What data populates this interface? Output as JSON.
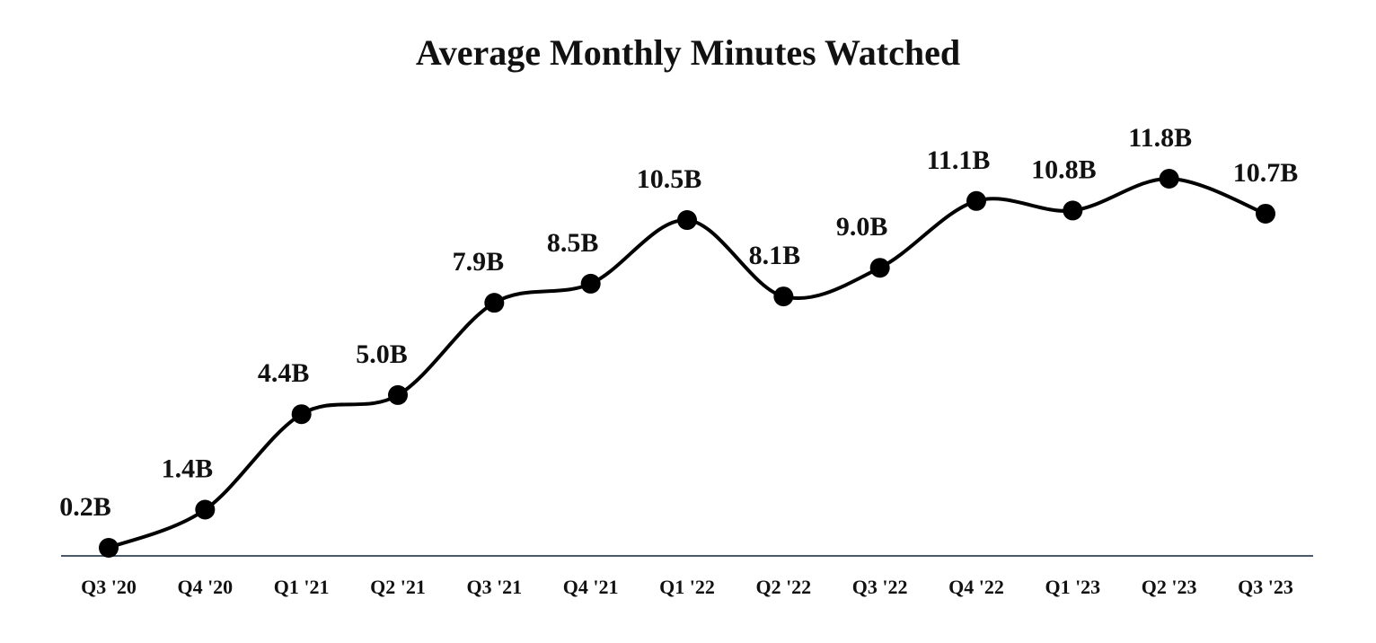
{
  "chart_data": {
    "type": "line",
    "title": "Average Monthly Minutes Watched",
    "xlabel": "",
    "ylabel": "",
    "categories": [
      "Q3 '20",
      "Q4 '20",
      "Q1 '21",
      "Q2 '21",
      "Q3 '21",
      "Q4 '21",
      "Q1 '22",
      "Q2 '22",
      "Q3 '22",
      "Q4 '22",
      "Q1 '23",
      "Q2 '23",
      "Q3 '23"
    ],
    "series": [
      {
        "values": [
          0.2,
          1.4,
          4.4,
          5.0,
          7.9,
          8.5,
          10.5,
          8.1,
          9.0,
          11.1,
          10.8,
          11.8,
          10.7
        ],
        "labels": [
          "0.2B",
          "1.4B",
          "4.4B",
          "5.0B",
          "7.9B",
          "8.5B",
          "10.5B",
          "8.1B",
          "9.0B",
          "11.1B",
          "10.8B",
          "11.8B",
          "10.7B"
        ]
      }
    ],
    "ylim": [
      0,
      12
    ],
    "grid": false,
    "legend": "none",
    "colors": {
      "line": "#000000",
      "marker": "#000000",
      "baseline": "#4a5a6a",
      "text": "#111111"
    }
  }
}
